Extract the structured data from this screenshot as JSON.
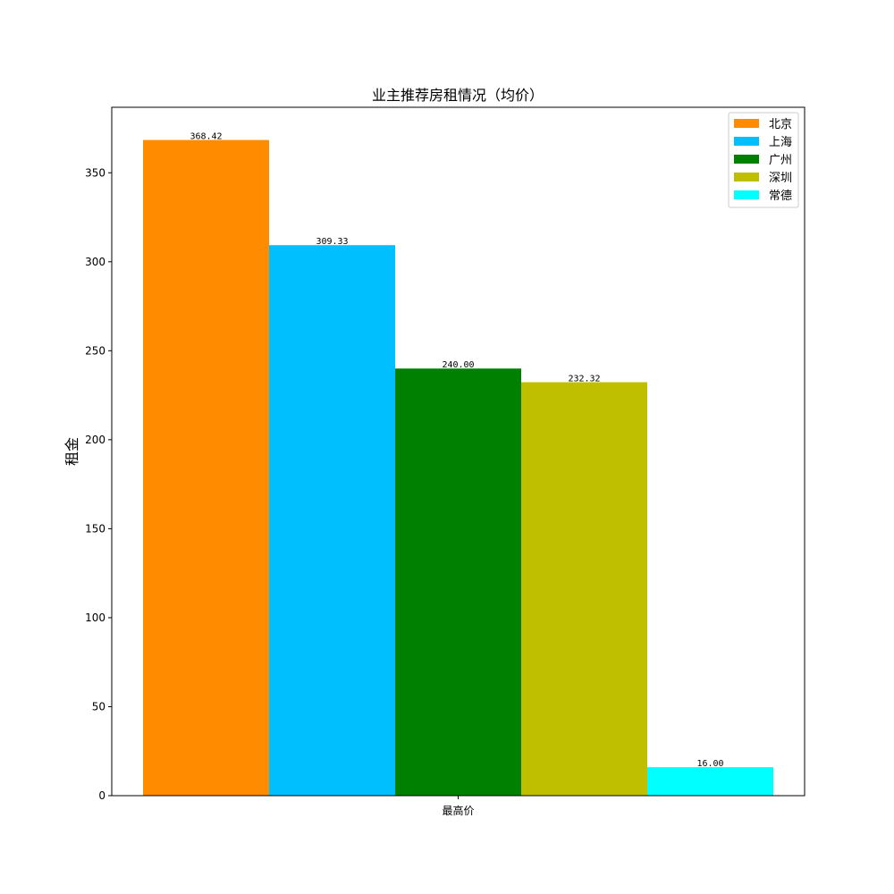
{
  "chart_data": {
    "type": "bar",
    "title": "业主推荐房租情况（均价）",
    "xlabel": "",
    "ylabel": "租金",
    "categories": [
      "最高价"
    ],
    "ylim": [
      0,
      386.8
    ],
    "yticks": [
      0,
      50,
      100,
      150,
      200,
      250,
      300,
      350
    ],
    "grid": false,
    "legend_position": "top-right",
    "series": [
      {
        "name": "北京",
        "values": [
          368.42
        ],
        "label": "368.42",
        "color": "#ff8c00"
      },
      {
        "name": "上海",
        "values": [
          309.33
        ],
        "label": "309.33",
        "color": "#00bfff"
      },
      {
        "name": "广州",
        "values": [
          240.0
        ],
        "label": "240.00",
        "color": "#008000"
      },
      {
        "name": "深圳",
        "values": [
          232.32
        ],
        "label": "232.32",
        "color": "#bfbf00"
      },
      {
        "name": "常德",
        "values": [
          16.0
        ],
        "label": "16.00",
        "color": "#00ffff"
      }
    ]
  }
}
